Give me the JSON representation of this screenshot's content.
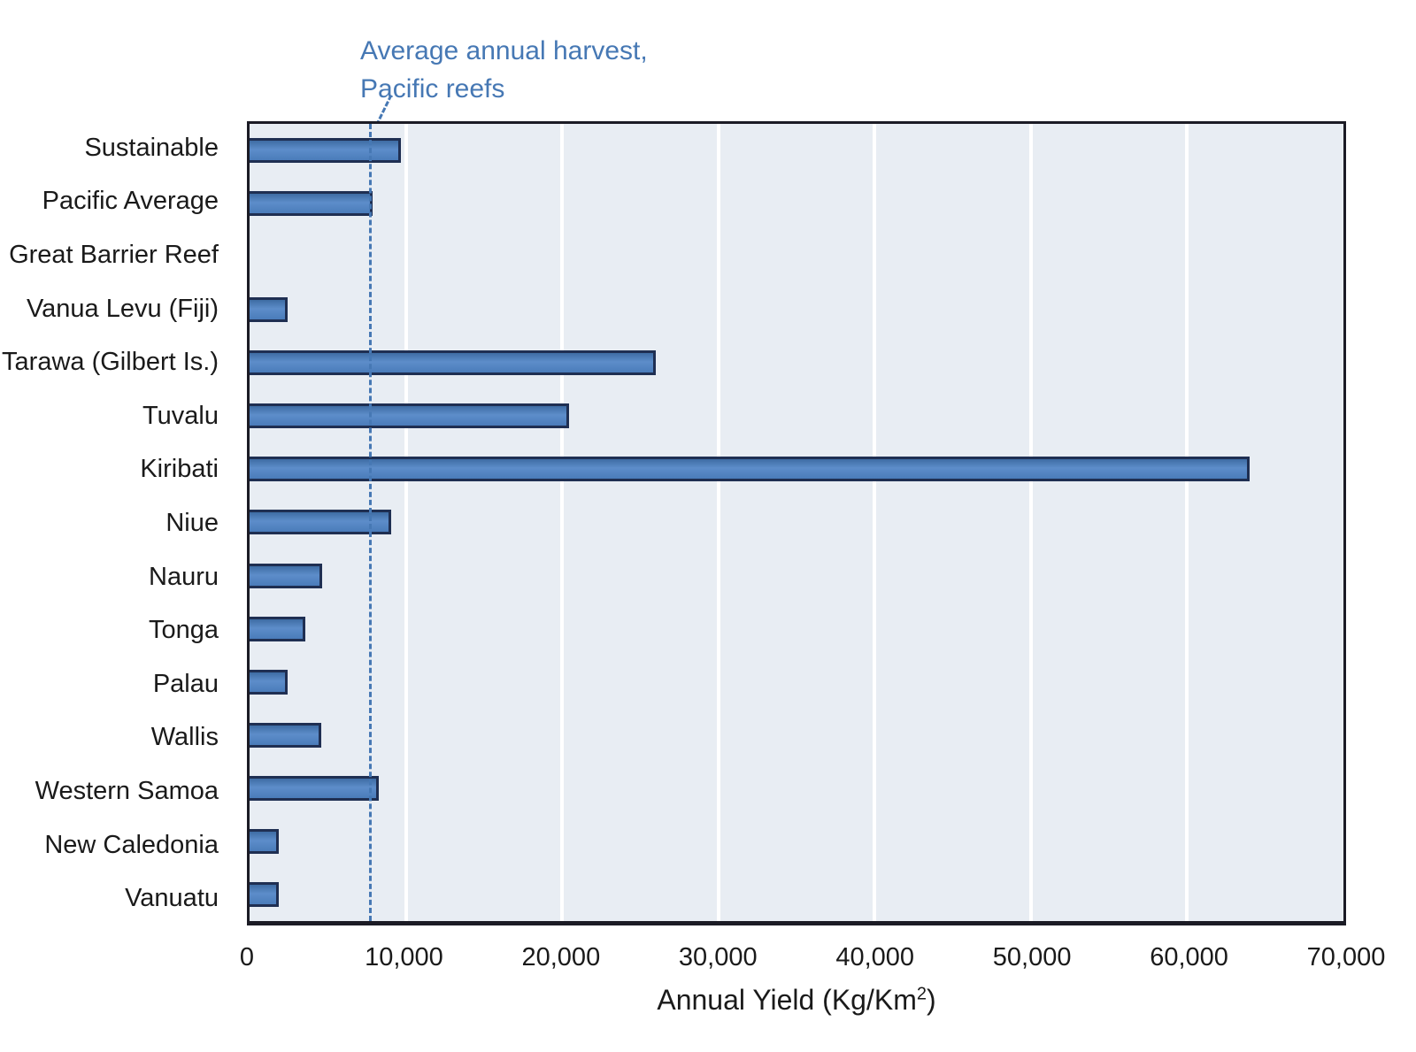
{
  "annotation": {
    "line1": "Average annual harvest,",
    "line2": "Pacific reefs"
  },
  "chart_data": {
    "type": "bar",
    "orientation": "horizontal",
    "title": "",
    "categories": [
      "Sustainable",
      "Pacific Average",
      "Great Barrier Reef",
      "Vanua Levu (Fiji)",
      "Tarawa (Gilbert Is.)",
      "Tuvalu",
      "Kiribati",
      "Niue",
      "Nauru",
      "Tonga",
      "Palau",
      "Wallis",
      "Western Samoa",
      "New Caledonia",
      "Vanuatu"
    ],
    "values": [
      9500,
      7700,
      0,
      2250,
      25800,
      20300,
      63800,
      8900,
      4500,
      3400,
      2250,
      4400,
      8100,
      1700,
      1700
    ],
    "xlabel": "Annual Yield (Kg/Km²)",
    "xlabel_parts": {
      "main": "Annual Yield (Kg/Km",
      "sup": "2",
      "end": ")"
    },
    "ylabel": "",
    "xlim": [
      0,
      70000
    ],
    "xticks": [
      0,
      10000,
      20000,
      30000,
      40000,
      50000,
      60000,
      70000
    ],
    "xtick_labels": [
      "0",
      "10,000",
      "20,000",
      "30,000",
      "40,000",
      "50,000",
      "60,000",
      "70,000"
    ],
    "grid": "vertical-white-gridlines",
    "legend": "none",
    "average_line": {
      "value": 7700,
      "style": "dashed",
      "label": "Average annual harvest, Pacific reefs"
    },
    "colors": {
      "bar_fill": "#4a7cba",
      "bar_border": "#1f2f52",
      "plot_background": "#e8edf3",
      "plot_border": "#1b1b25",
      "gridline": "#ffffff",
      "dashed_line": "#4678b4",
      "annotation_text": "#4678b4",
      "label_text": "#1a1a1a",
      "page_background": "#ffffff"
    }
  }
}
